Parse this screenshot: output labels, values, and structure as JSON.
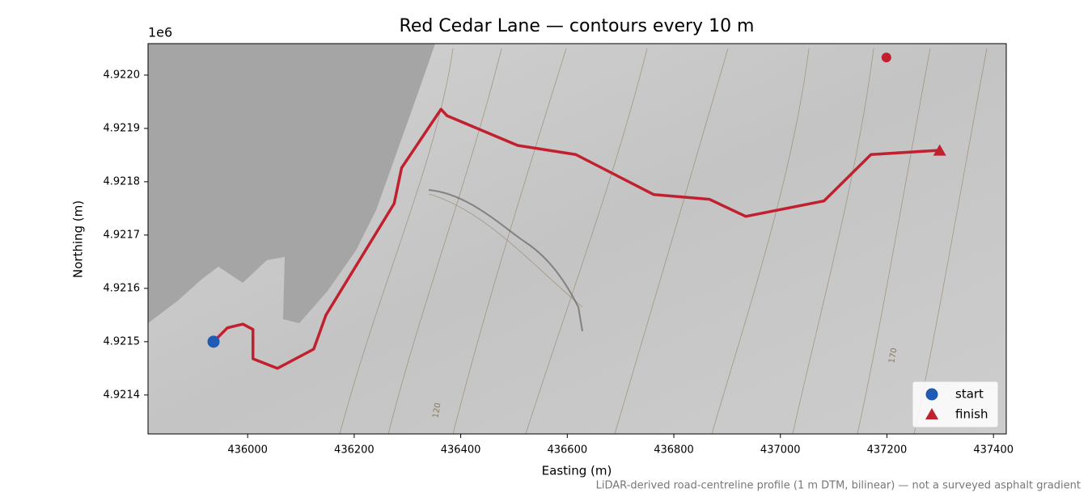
{
  "chart_data": {
    "type": "map-route",
    "title": "Red Cedar Lane — contours every 10 m",
    "x_label": "Easting (m)",
    "y_label": "Northing (m)",
    "y_offset_label": "1e6",
    "footnote": "LiDAR-derived road-centreline profile (1 m DTM, bilinear) — not a surveyed asphalt gradient",
    "contour_labels": [
      "120",
      "170"
    ],
    "xlim": [
      435813,
      437424
    ],
    "ylim": [
      4921327,
      4922059
    ],
    "xticks": [
      436000,
      436200,
      436400,
      436600,
      436800,
      437000,
      437200,
      437400
    ],
    "yticks": [
      {
        "value": 4921400,
        "label": "4.9214"
      },
      {
        "value": 4921500,
        "label": "4.9215"
      },
      {
        "value": 4921600,
        "label": "4.9216"
      },
      {
        "value": 4921700,
        "label": "4.9217"
      },
      {
        "value": 4921800,
        "label": "4.9218"
      },
      {
        "value": 4921900,
        "label": "4.9219"
      },
      {
        "value": 4922000,
        "label": "4.9220"
      }
    ],
    "route": {
      "color": "#c1202f",
      "x": [
        435936,
        435962,
        435991,
        436010,
        436010,
        436056,
        436124,
        436147,
        436275,
        436289,
        436363,
        436374,
        436507,
        436616,
        436762,
        436867,
        436935,
        437082,
        437170,
        437299
      ],
      "y": [
        4921500,
        4921526,
        4921533,
        4921523,
        4921468,
        4921450,
        4921486,
        4921550,
        4921759,
        4921826,
        4921936,
        4921924,
        4921868,
        4921851,
        4921776,
        4921767,
        4921735,
        4921764,
        4921851,
        4921859
      ]
    },
    "series": [
      {
        "name": "start",
        "marker": "circle",
        "color": "#1f5bb5",
        "x": [
          435936
        ],
        "y": [
          4921500
        ]
      },
      {
        "name": "finish",
        "marker": "triangle",
        "color": "#c1202f",
        "x": [
          437299
        ],
        "y": [
          4921858
        ]
      }
    ],
    "extra_points": {
      "color": "#c1202f",
      "x": [
        437199
      ],
      "y": [
        4922033
      ]
    },
    "legend": "lower right"
  }
}
